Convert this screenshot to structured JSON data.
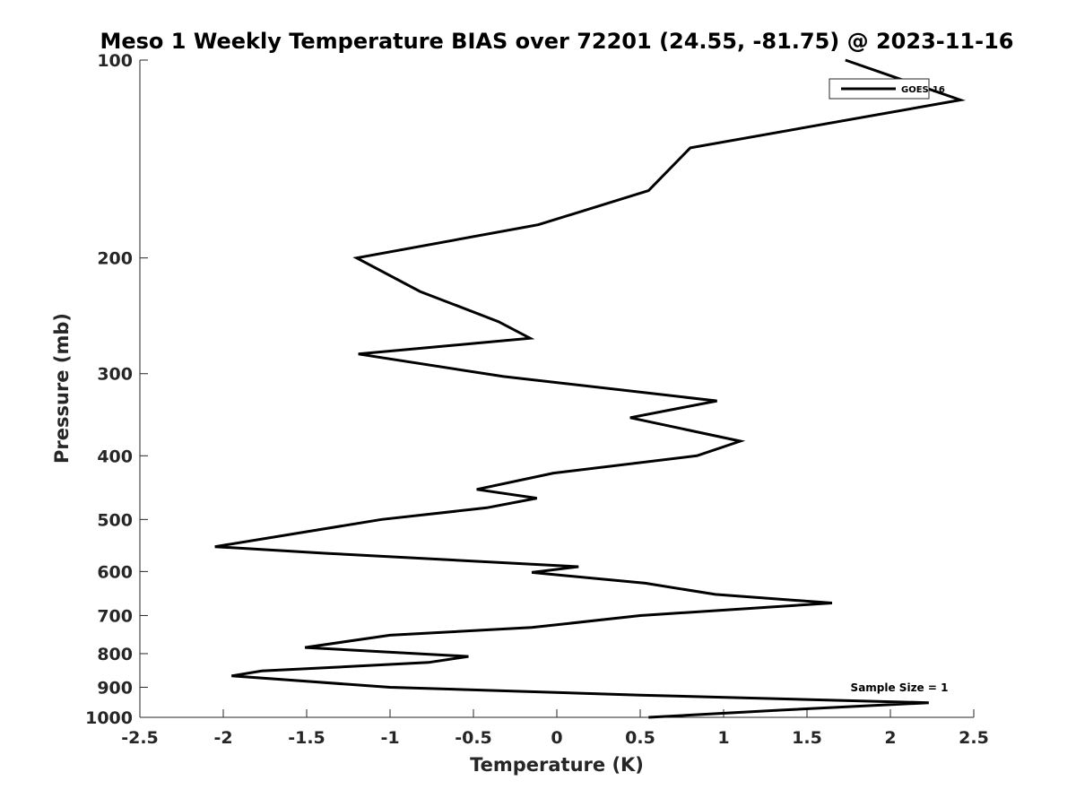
{
  "chart_data": {
    "type": "line",
    "title": "Meso 1 Weekly Temperature BIAS over 72201 (24.55, -81.75) @ 2023-11-16",
    "xlabel": "Temperature (K)",
    "ylabel": "Pressure (mb)",
    "xlim": [
      -2.5,
      2.5
    ],
    "ylim": [
      100,
      1000
    ],
    "yscale": "log",
    "yreversed": true,
    "grid": false,
    "legend_position": "top-right",
    "x_ticks": [
      -2.5,
      -2,
      -1.5,
      -1,
      -0.5,
      0,
      0.5,
      1,
      1.5,
      2,
      2.5
    ],
    "x_tick_labels": [
      "-2.5",
      "-2",
      "-1.5",
      "-1",
      "-0.5",
      "0",
      "0.5",
      "1",
      "1.5",
      "2",
      "2.5"
    ],
    "y_ticks": [
      100,
      200,
      300,
      400,
      500,
      600,
      700,
      800,
      900,
      1000
    ],
    "y_tick_labels": [
      "100",
      "200",
      "300",
      "400",
      "500",
      "600",
      "700",
      "800",
      "900",
      "1000"
    ],
    "series": [
      {
        "name": "GOES-16",
        "color": "#000000",
        "points": [
          [
            0.55,
            1000
          ],
          [
            1.35,
            975
          ],
          [
            2.23,
            950
          ],
          [
            0.5,
            925
          ],
          [
            -1.0,
            900
          ],
          [
            -1.95,
            865
          ],
          [
            -1.77,
            850
          ],
          [
            -0.77,
            825
          ],
          [
            -0.53,
            808
          ],
          [
            -1.51,
            783
          ],
          [
            -1.0,
            750
          ],
          [
            -0.15,
            730
          ],
          [
            0.5,
            700
          ],
          [
            1.65,
            670
          ],
          [
            0.95,
            650
          ],
          [
            0.53,
            625
          ],
          [
            -0.15,
            602
          ],
          [
            0.13,
            590
          ],
          [
            -1.38,
            563
          ],
          [
            -2.05,
            550
          ],
          [
            -1.05,
            500
          ],
          [
            -0.42,
            480
          ],
          [
            -0.12,
            464
          ],
          [
            -0.48,
            450
          ],
          [
            -0.02,
            425
          ],
          [
            0.84,
            400
          ],
          [
            1.1,
            380
          ],
          [
            0.44,
            350
          ],
          [
            0.96,
            330
          ],
          [
            -0.32,
            303
          ],
          [
            -1.19,
            280
          ],
          [
            -0.16,
            265
          ],
          [
            -0.35,
            250
          ],
          [
            -0.82,
            225
          ],
          [
            -1.2,
            200
          ],
          [
            -0.11,
            178
          ],
          [
            0.55,
            158
          ],
          [
            0.8,
            136
          ],
          [
            2.42,
            115
          ],
          [
            1.73,
            100
          ]
        ]
      }
    ],
    "annotation": "Sample Size = 1"
  }
}
